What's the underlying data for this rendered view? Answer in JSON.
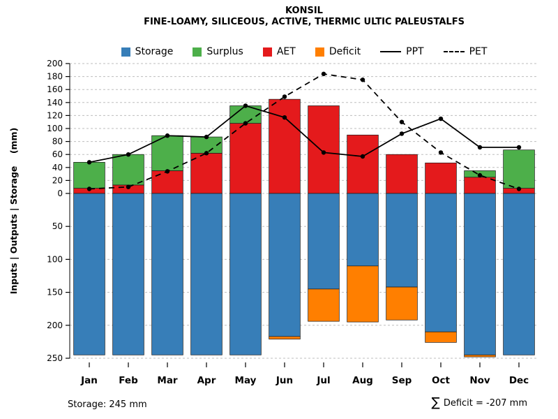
{
  "chart_data": {
    "type": "bar",
    "title": "KONSIL",
    "subtitle": "FINE-LOAMY, SILICEOUS, ACTIVE, THERMIC ULTIC PALEUSTALFS",
    "ylabel": "Inputs | Outputs | Storage    (mm)",
    "categories": [
      "Jan",
      "Feb",
      "Mar",
      "Apr",
      "May",
      "Jun",
      "Jul",
      "Aug",
      "Sep",
      "Oct",
      "Nov",
      "Dec"
    ],
    "axis_top": {
      "min": 0,
      "max": 200,
      "step": 20
    },
    "axis_bottom": {
      "min": 0,
      "max": 250,
      "step": 50
    },
    "grid": true,
    "legend_position": "top",
    "series": [
      {
        "name": "AET",
        "kind": "bar-up",
        "color": "#E41A1C",
        "values": [
          8,
          13,
          35,
          62,
          108,
          145,
          135,
          90,
          60,
          47,
          25,
          8
        ]
      },
      {
        "name": "Surplus",
        "kind": "bar-up-stacked",
        "color": "#4DAF4A",
        "values": [
          40,
          47,
          54,
          25,
          27,
          0,
          0,
          0,
          0,
          0,
          10,
          59
        ]
      },
      {
        "name": "Storage",
        "kind": "bar-down",
        "color": "#377EB8",
        "values": [
          245,
          245,
          245,
          245,
          245,
          217,
          145,
          110,
          142,
          210,
          245,
          245
        ]
      },
      {
        "name": "Deficit",
        "kind": "bar-down-stacked",
        "color": "#FF7F00",
        "values": [
          0,
          0,
          0,
          0,
          0,
          4,
          49,
          85,
          50,
          16,
          3,
          0
        ]
      },
      {
        "name": "PPT",
        "kind": "line-solid",
        "color": "#000000",
        "values": [
          48,
          60,
          89,
          87,
          135,
          117,
          63,
          57,
          92,
          115,
          71,
          71
        ]
      },
      {
        "name": "PET",
        "kind": "line-dashed",
        "color": "#000000",
        "values": [
          7,
          10,
          34,
          62,
          108,
          149,
          184,
          175,
          110,
          63,
          28,
          7
        ]
      }
    ]
  },
  "legend": {
    "items": [
      {
        "key": "storage",
        "label": "Storage",
        "color": "#377EB8"
      },
      {
        "key": "surplus",
        "label": "Surplus",
        "color": "#4DAF4A"
      },
      {
        "key": "aet",
        "label": "AET",
        "color": "#E41A1C"
      },
      {
        "key": "deficit",
        "label": "Deficit",
        "color": "#FF7F00"
      },
      {
        "key": "ppt",
        "label": "PPT",
        "color": "#000000",
        "line": "solid"
      },
      {
        "key": "pet",
        "label": "PET",
        "color": "#000000",
        "line": "dashed"
      }
    ]
  },
  "footer": {
    "storage_note": "Storage: 245 mm",
    "sigma": "∑",
    "deficit_note": "Deficit = -207 mm"
  }
}
